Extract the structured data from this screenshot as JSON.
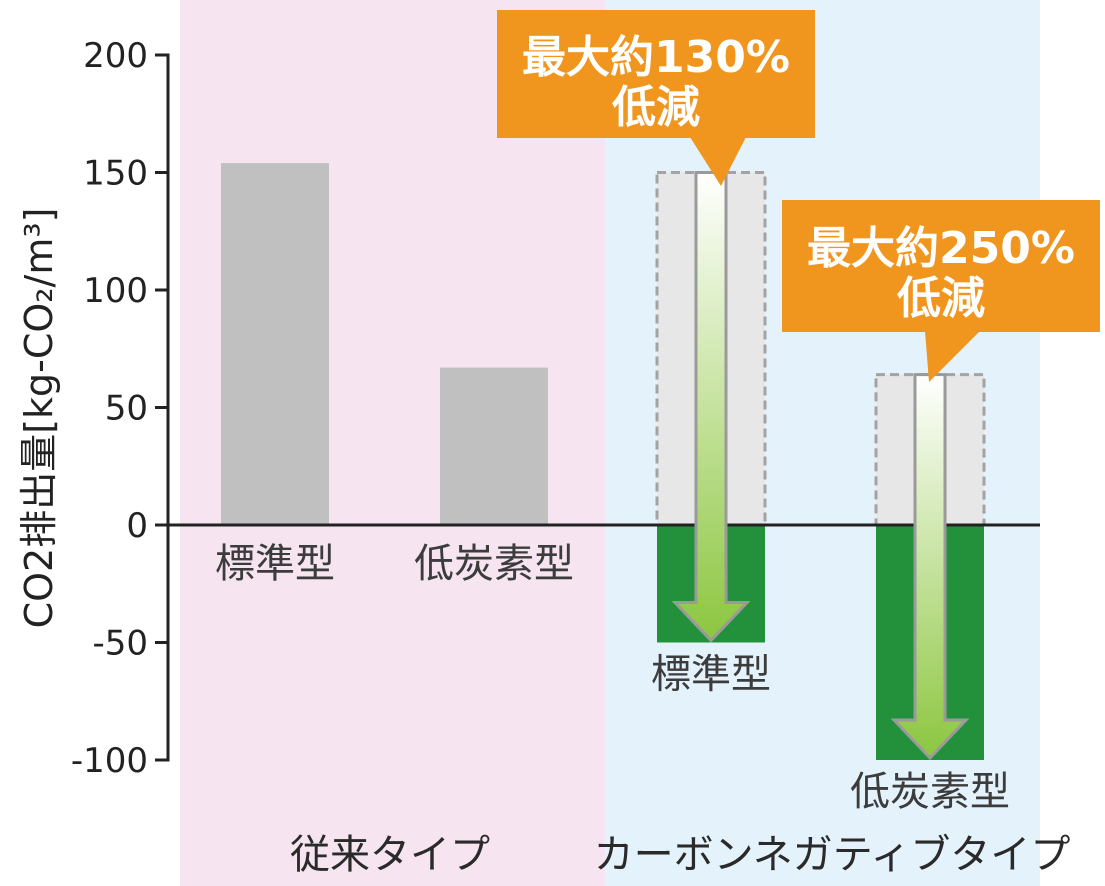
{
  "colors": {
    "positive_bar": "#c0c0c0",
    "negative_bar": "#23913c",
    "reference_fill": "#e7e7e7",
    "reference_stroke": "#a3a3a3",
    "callout": "#f0961f",
    "arrow_top": "#ffffff",
    "arrow_bottom": "#8cc63f",
    "arrow_stroke": "#9a9a9a",
    "axis": "#222222"
  },
  "chart_data": {
    "type": "bar",
    "ylabel": "CO2排出量[kg-CO₂/m³]",
    "ylim": [
      -100,
      200
    ],
    "yticks": [
      200,
      150,
      100,
      50,
      0,
      -50,
      -100
    ],
    "grid": false,
    "groups": [
      {
        "label": "従来タイプ",
        "background": "#f6e4f0"
      },
      {
        "label": "カーボンネガティブタイプ",
        "background": "#e4f2fb"
      }
    ],
    "bars": [
      {
        "group": 0,
        "category": "標準型",
        "value": 154
      },
      {
        "group": 0,
        "category": "低炭素型",
        "value": 67
      },
      {
        "group": 1,
        "category": "標準型",
        "value": -50,
        "reference_value": 150,
        "reduction_label": [
          "最大約130%",
          "低減"
        ]
      },
      {
        "group": 1,
        "category": "低炭素型",
        "value": -100,
        "reference_value": 64,
        "reduction_label": [
          "最大約250%",
          "低減"
        ]
      }
    ]
  }
}
